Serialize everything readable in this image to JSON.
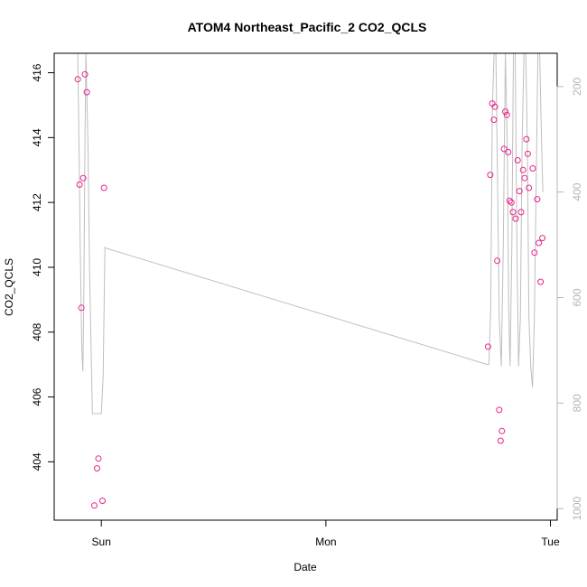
{
  "chart_data": {
    "type": "scatter",
    "title": "ATOM4 Northeast_Pacific_2 CO2_QCLS",
    "xlabel": "Date",
    "ylabel": "CO2_QCLS",
    "x_ticks": [
      "Sun",
      "Mon",
      "Tue"
    ],
    "x_tick_values": [
      1,
      2,
      3
    ],
    "xlim": [
      0.79,
      3.03
    ],
    "ylim": [
      402.2,
      416.6
    ],
    "y_ticks": [
      404,
      406,
      408,
      410,
      412,
      414,
      416
    ],
    "y2_ticks": [
      200,
      400,
      600,
      800,
      1000
    ],
    "y2lim": [
      1022,
      137
    ],
    "grid": false,
    "legend": "none",
    "colors": {
      "points": "#e8238c",
      "line": "#bebebe",
      "axis": "#000000",
      "right_axis": "#b4b4b4"
    },
    "series": [
      {
        "kind": "points",
        "axis": "left",
        "x": [
          0.895,
          0.903,
          0.911,
          0.919,
          0.927,
          0.935,
          0.969,
          0.981,
          0.987,
          1.005,
          1.012,
          2.722,
          2.732,
          2.741,
          2.748,
          2.753,
          2.763,
          2.772,
          2.778,
          2.784,
          2.793,
          2.799,
          2.806,
          2.812,
          2.818,
          2.826,
          2.833,
          2.845,
          2.854,
          2.862,
          2.869,
          2.878,
          2.885,
          2.893,
          2.899,
          2.904,
          2.921,
          2.929,
          2.941,
          2.948,
          2.956,
          2.964
        ],
        "y": [
          415.8,
          412.55,
          408.75,
          412.75,
          415.95,
          415.4,
          402.65,
          403.8,
          404.1,
          402.8,
          412.45,
          407.55,
          412.85,
          415.05,
          414.55,
          414.95,
          410.2,
          405.6,
          404.65,
          404.95,
          413.65,
          414.8,
          414.7,
          413.55,
          412.05,
          412.0,
          411.7,
          411.5,
          413.3,
          412.35,
          411.7,
          413.0,
          412.75,
          413.95,
          413.5,
          412.45,
          413.05,
          410.45,
          412.1,
          410.75,
          409.55,
          410.9
        ]
      },
      {
        "kind": "line",
        "axis": "right",
        "x": [
          0.895,
          0.9,
          0.906,
          0.913,
          0.918,
          0.922,
          0.927,
          0.931,
          0.94,
          0.948,
          0.96,
          0.97,
          0.99,
          1.0,
          1.008,
          1.016,
          1.025,
          2.72,
          2.726,
          2.734,
          2.741,
          2.749,
          2.757,
          2.765,
          2.772,
          2.781,
          2.79,
          2.799,
          2.808,
          2.814,
          2.82,
          2.828,
          2.835,
          2.843,
          2.851,
          2.858,
          2.866,
          2.874,
          2.882,
          2.89,
          2.897,
          2.904,
          2.912,
          2.92,
          2.928,
          2.936,
          2.944,
          2.952,
          2.96,
          2.966
        ],
        "y": [
          137,
          300,
          500,
          700,
          740,
          600,
          300,
          137,
          300,
          560,
          820,
          820,
          820,
          820,
          750,
          505,
          507,
          727,
          727,
          620,
          250,
          137,
          137,
          400,
          640,
          730,
          500,
          137,
          320,
          620,
          730,
          500,
          137,
          137,
          520,
          730,
          640,
          300,
          137,
          137,
          300,
          640,
          730,
          770,
          650,
          400,
          137,
          137,
          300,
          400
        ]
      }
    ]
  }
}
